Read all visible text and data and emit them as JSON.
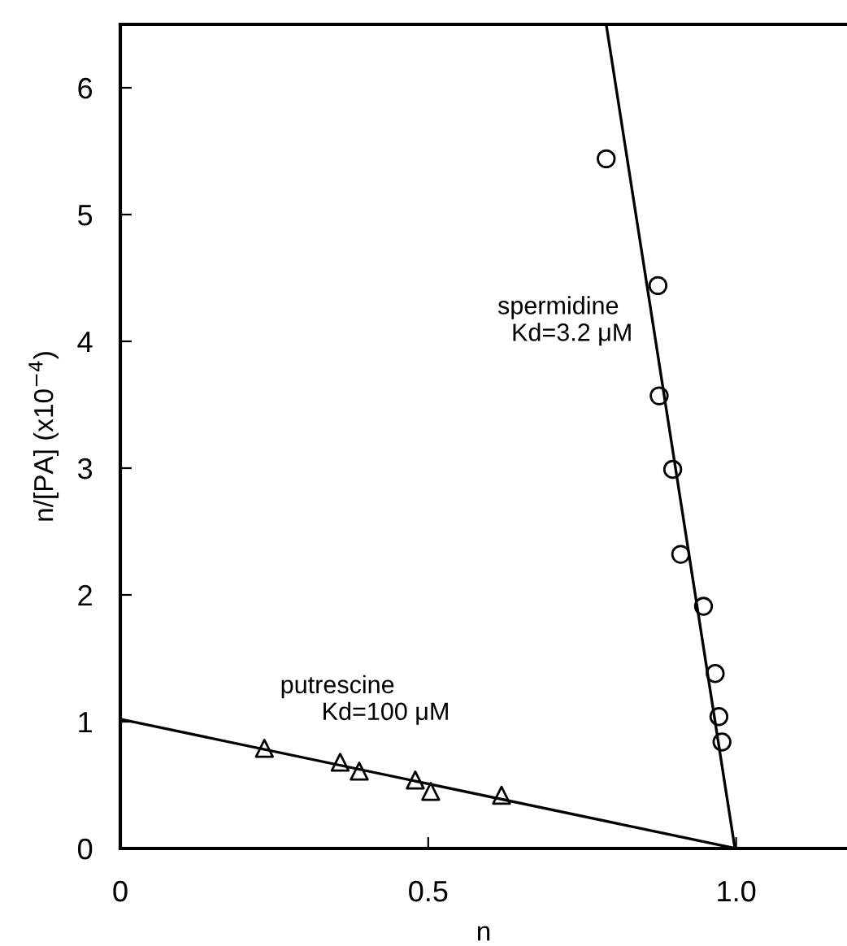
{
  "chart_data": {
    "type": "scatter",
    "xlabel": "n",
    "ylabel": "n/[PA] (x10$^{−4}$)",
    "xlim": [
      0,
      1.18
    ],
    "ylim": [
      0,
      6.5
    ],
    "xticks": [
      0,
      0.5,
      {
        "value": 1.0,
        "label": "1.0"
      }
    ],
    "yticks": [
      0,
      1,
      2,
      3,
      4,
      5,
      6
    ],
    "grid": false,
    "legend": false,
    "series": [
      {
        "marker": "circle",
        "color": "#000000",
        "x": [
          0.789,
          0.873,
          0.875,
          0.897,
          0.91,
          0.947,
          0.966,
          0.972,
          0.977
        ],
        "values": [
          5.44,
          4.44,
          3.57,
          2.99,
          2.32,
          1.91,
          1.38,
          1.04,
          0.84
        ]
      },
      {
        "marker": "triangle",
        "color": "#000000",
        "x": [
          0.234,
          0.357,
          0.388,
          0.479,
          0.504,
          0.619
        ],
        "values": [
          0.79,
          0.68,
          0.61,
          0.54,
          0.45,
          0.42
        ]
      },
      {
        "type": "line",
        "marker": "none",
        "line_style": "solid",
        "color": "#000000",
        "x": [
          0.789,
          0.998
        ],
        "values": [
          6.5,
          0
        ]
      },
      {
        "type": "line",
        "marker": "none",
        "line_style": "solid",
        "color": "#000000",
        "x": [
          0,
          1.0
        ],
        "values": [
          1.02,
          0
        ]
      }
    ],
    "annotations": [
      "spermidine\n  Kd=3.2 μM",
      "putrescine\n      Kd=100 μM"
    ]
  }
}
